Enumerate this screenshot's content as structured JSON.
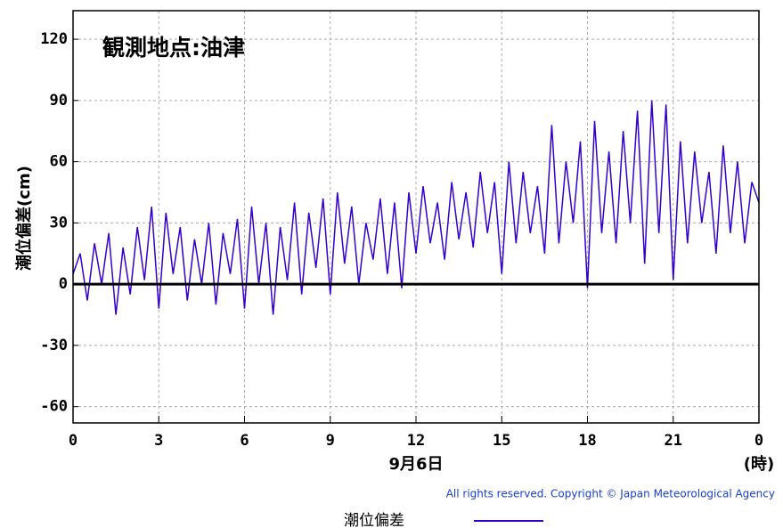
{
  "chart_data": {
    "type": "line",
    "title": "観測地点:油津",
    "ylabel": "潮位偏差(cm)",
    "date_label": "9月6日",
    "unit_label": "(時)",
    "copyright": "All rights reserved. Copyright © Japan Meteorological Agency",
    "xlim": [
      0,
      24
    ],
    "xticks": [
      0,
      3,
      6,
      9,
      12,
      15,
      18,
      21,
      {
        "value": 24,
        "label": "0"
      }
    ],
    "ylim": [
      -68,
      134
    ],
    "yticks": [
      -60,
      -30,
      0,
      30,
      60,
      90,
      120
    ],
    "grid": true,
    "x": [
      0,
      0.25,
      0.5,
      0.75,
      1,
      1.25,
      1.5,
      1.75,
      2,
      2.25,
      2.5,
      2.75,
      3,
      3.25,
      3.5,
      3.75,
      4,
      4.25,
      4.5,
      4.75,
      5,
      5.25,
      5.5,
      5.75,
      6,
      6.25,
      6.5,
      6.75,
      7,
      7.25,
      7.5,
      7.75,
      8,
      8.25,
      8.5,
      8.75,
      9,
      9.25,
      9.5,
      9.75,
      10,
      10.25,
      10.5,
      10.75,
      11,
      11.25,
      11.5,
      11.75,
      12,
      12.25,
      12.5,
      12.75,
      13,
      13.25,
      13.5,
      13.75,
      14,
      14.25,
      14.5,
      14.75,
      15,
      15.25,
      15.5,
      15.75,
      16,
      16.25,
      16.5,
      16.75,
      17,
      17.25,
      17.5,
      17.75,
      18,
      18.25,
      18.5,
      18.75,
      19,
      19.25,
      19.5,
      19.75,
      20,
      20.25,
      20.5,
      20.75,
      21,
      21.25,
      21.5,
      21.75,
      22,
      22.25,
      22.5,
      22.75,
      23,
      23.25,
      23.5,
      23.75,
      24
    ],
    "series": [
      {
        "name": "潮位偏差",
        "color": "#3300cc",
        "values": [
          5,
          15,
          -8,
          20,
          0,
          25,
          -15,
          18,
          -5,
          28,
          2,
          38,
          -12,
          35,
          5,
          28,
          -8,
          22,
          0,
          30,
          -10,
          25,
          5,
          32,
          -12,
          38,
          0,
          30,
          -15,
          28,
          2,
          40,
          -5,
          35,
          8,
          42,
          -5,
          45,
          10,
          38,
          0,
          30,
          12,
          42,
          5,
          40,
          -2,
          45,
          15,
          48,
          20,
          40,
          12,
          50,
          22,
          45,
          18,
          55,
          25,
          50,
          5,
          60,
          20,
          55,
          25,
          48,
          15,
          78,
          20,
          60,
          30,
          70,
          -2,
          80,
          25,
          65,
          20,
          75,
          30,
          85,
          10,
          90,
          25,
          88,
          2,
          70,
          20,
          65,
          30,
          55,
          15,
          68,
          25,
          60,
          20,
          50,
          40
        ]
      }
    ]
  }
}
